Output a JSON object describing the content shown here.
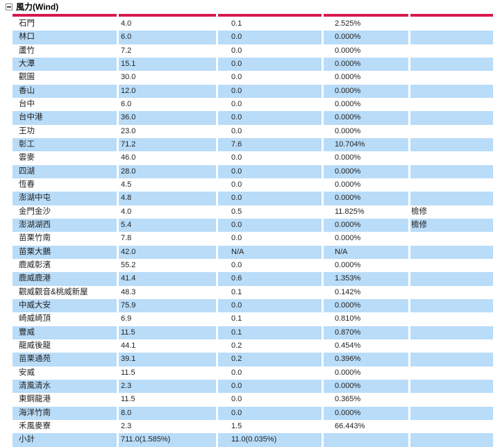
{
  "header": {
    "title": "風力(Wind)"
  },
  "colors": {
    "accent_red": "#d6194d",
    "row_blue": "#b9dcf8"
  },
  "table": {
    "rows": [
      {
        "name": "石門",
        "capacity": "4.0",
        "output": "0.1",
        "percent": "2.525%",
        "remark": ""
      },
      {
        "name": "林口",
        "capacity": "6.0",
        "output": "0.0",
        "percent": "0.000%",
        "remark": ""
      },
      {
        "name": "蘆竹",
        "capacity": "7.2",
        "output": "0.0",
        "percent": "0.000%",
        "remark": ""
      },
      {
        "name": "大潭",
        "capacity": "15.1",
        "output": "0.0",
        "percent": "0.000%",
        "remark": ""
      },
      {
        "name": "觀園",
        "capacity": "30.0",
        "output": "0.0",
        "percent": "0.000%",
        "remark": ""
      },
      {
        "name": "香山",
        "capacity": "12.0",
        "output": "0.0",
        "percent": "0.000%",
        "remark": ""
      },
      {
        "name": "台中",
        "capacity": "6.0",
        "output": "0.0",
        "percent": "0.000%",
        "remark": ""
      },
      {
        "name": "台中港",
        "capacity": "36.0",
        "output": "0.0",
        "percent": "0.000%",
        "remark": ""
      },
      {
        "name": "王功",
        "capacity": "23.0",
        "output": "0.0",
        "percent": "0.000%",
        "remark": ""
      },
      {
        "name": "彰工",
        "capacity": "71.2",
        "output": "7.6",
        "percent": "10.704%",
        "remark": ""
      },
      {
        "name": "雲麥",
        "capacity": "46.0",
        "output": "0.0",
        "percent": "0.000%",
        "remark": ""
      },
      {
        "name": "四湖",
        "capacity": "28.0",
        "output": "0.0",
        "percent": "0.000%",
        "remark": ""
      },
      {
        "name": "恆春",
        "capacity": "4.5",
        "output": "0.0",
        "percent": "0.000%",
        "remark": ""
      },
      {
        "name": "澎湖中屯",
        "capacity": "4.8",
        "output": "0.0",
        "percent": "0.000%",
        "remark": ""
      },
      {
        "name": "金門金沙",
        "capacity": "4.0",
        "output": "0.5",
        "percent": "11.825%",
        "remark": "檢修"
      },
      {
        "name": "澎湖湖西",
        "capacity": "5.4",
        "output": "0.0",
        "percent": "0.000%",
        "remark": "檢修"
      },
      {
        "name": "苗栗竹南",
        "capacity": "7.8",
        "output": "0.0",
        "percent": "0.000%",
        "remark": ""
      },
      {
        "name": "苗栗大鵬",
        "capacity": "42.0",
        "output": "N/A",
        "percent": "N/A",
        "remark": ""
      },
      {
        "name": "鹿威彰濱",
        "capacity": "55.2",
        "output": "0.0",
        "percent": "0.000%",
        "remark": ""
      },
      {
        "name": "鹿威鹿港",
        "capacity": "41.4",
        "output": "0.6",
        "percent": "1.353%",
        "remark": ""
      },
      {
        "name": "觀威觀音&桃威新屋",
        "capacity": "48.3",
        "output": "0.1",
        "percent": "0.142%",
        "remark": ""
      },
      {
        "name": "中威大安",
        "capacity": "75.9",
        "output": "0.0",
        "percent": "0.000%",
        "remark": ""
      },
      {
        "name": "崎威崎頂",
        "capacity": "6.9",
        "output": "0.1",
        "percent": "0.810%",
        "remark": ""
      },
      {
        "name": "豐威",
        "capacity": "11.5",
        "output": "0.1",
        "percent": "0.870%",
        "remark": ""
      },
      {
        "name": "龍威後龍",
        "capacity": "44.1",
        "output": "0.2",
        "percent": "0.454%",
        "remark": ""
      },
      {
        "name": "苗栗通苑",
        "capacity": "39.1",
        "output": "0.2",
        "percent": "0.396%",
        "remark": ""
      },
      {
        "name": "安威",
        "capacity": "11.5",
        "output": "0.0",
        "percent": "0.000%",
        "remark": ""
      },
      {
        "name": "清風清水",
        "capacity": "2.3",
        "output": "0.0",
        "percent": "0.000%",
        "remark": ""
      },
      {
        "name": "東鋼龍港",
        "capacity": "11.5",
        "output": "0.0",
        "percent": "0.365%",
        "remark": ""
      },
      {
        "name": "海洋竹南",
        "capacity": "8.0",
        "output": "0.0",
        "percent": "0.000%",
        "remark": ""
      },
      {
        "name": "禾風麥寮",
        "capacity": "2.3",
        "output": "1.5",
        "percent": "66.443%",
        "remark": ""
      },
      {
        "name": "小計",
        "capacity": "711.0(1.585%)",
        "output": "11.0(0.035%)",
        "percent": "",
        "remark": "",
        "subtotal": true
      }
    ]
  }
}
